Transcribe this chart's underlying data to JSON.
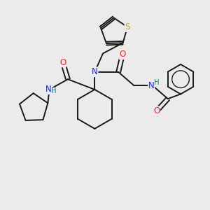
{
  "background_color": "#ebebeb",
  "bond_color": "#1a1a1a",
  "atom_colors": {
    "N": "#2020ff",
    "O": "#ff2020",
    "S": "#b8b800",
    "H": "#008080",
    "C": "#1a1a1a"
  },
  "figsize": [
    3.0,
    3.0
  ],
  "dpi": 100,
  "lw": 1.4,
  "fs": 8.5
}
